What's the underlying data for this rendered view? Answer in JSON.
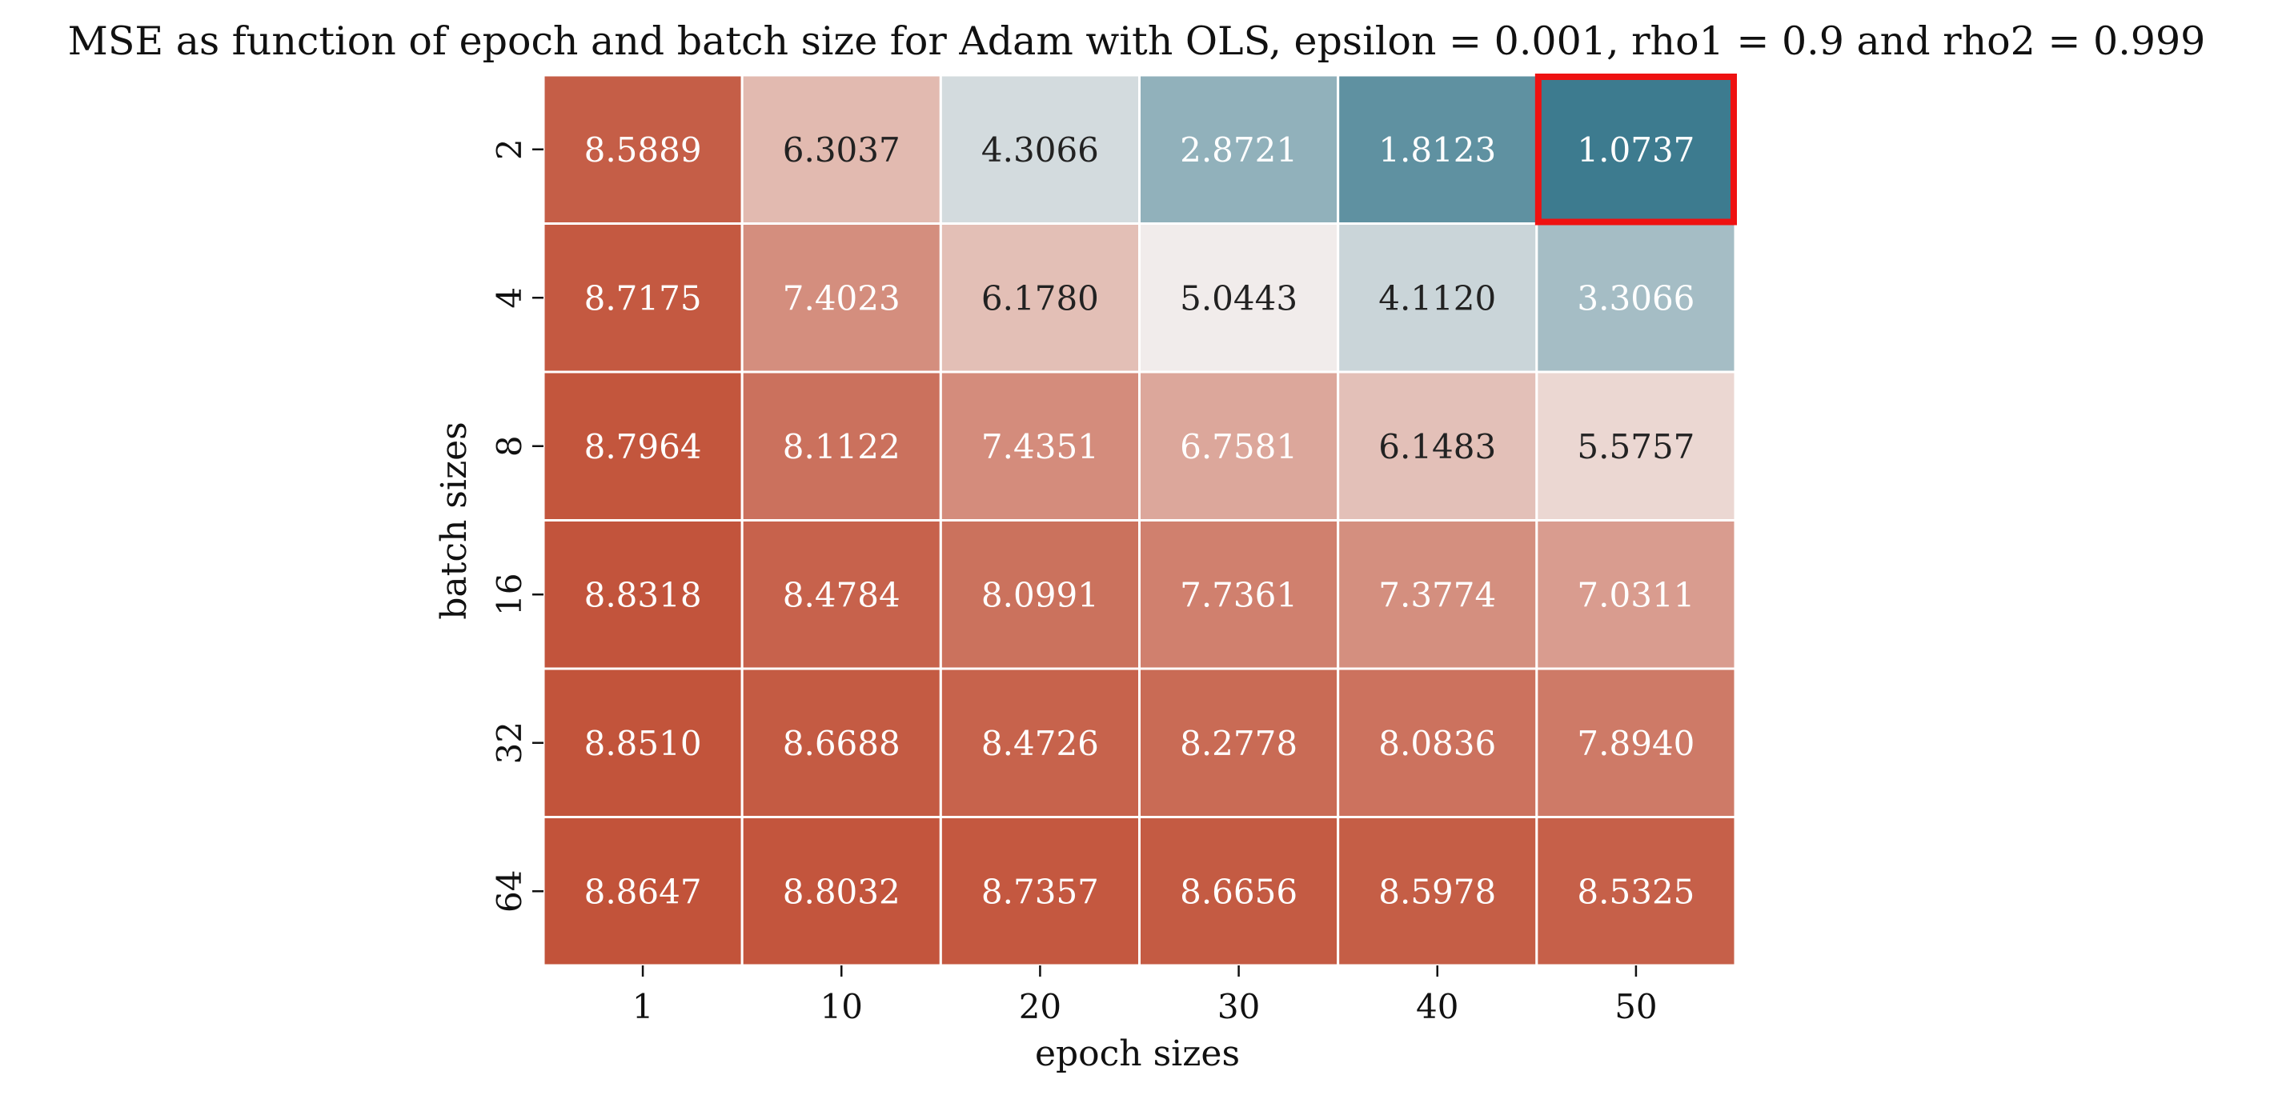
{
  "chart_data": {
    "type": "heatmap",
    "title": "MSE as function of epoch and batch size for Adam with OLS, epsilon = 0.001, rho1 = 0.9 and rho2 = 0.999",
    "xlabel": "epoch sizes",
    "ylabel": "batch sizes",
    "x": [
      "1",
      "10",
      "20",
      "30",
      "40",
      "50"
    ],
    "y": [
      "2",
      "4",
      "8",
      "16",
      "32",
      "64"
    ],
    "values": [
      [
        8.5889,
        6.3037,
        4.3066,
        2.8721,
        1.8123,
        1.0737
      ],
      [
        8.7175,
        7.4023,
        6.178,
        5.0443,
        4.112,
        3.3066
      ],
      [
        8.7964,
        8.1122,
        7.4351,
        6.7581,
        6.1483,
        5.5757
      ],
      [
        8.8318,
        8.4784,
        8.0991,
        7.7361,
        7.3774,
        7.0311
      ],
      [
        8.851,
        8.6688,
        8.4726,
        8.2778,
        8.0836,
        7.894
      ],
      [
        8.8647,
        8.8032,
        8.7357,
        8.6656,
        8.5978,
        8.5325
      ]
    ],
    "value_labels": [
      [
        "8.5889",
        "6.3037",
        "4.3066",
        "2.8721",
        "1.8123",
        "1.0737"
      ],
      [
        "8.7175",
        "7.4023",
        "6.1780",
        "5.0443",
        "4.1120",
        "3.3066"
      ],
      [
        "8.7964",
        "8.1122",
        "7.4351",
        "6.7581",
        "6.1483",
        "5.5757"
      ],
      [
        "8.8318",
        "8.4784",
        "8.0991",
        "7.7361",
        "7.3774",
        "7.0311"
      ],
      [
        "8.8510",
        "8.6688",
        "8.4726",
        "8.2778",
        "8.0836",
        "7.8940"
      ],
      [
        "8.8647",
        "8.8032",
        "8.7357",
        "8.6656",
        "8.5978",
        "8.5325"
      ]
    ],
    "colormap": {
      "low": "#3d7b8f",
      "mid": "#f2efee",
      "high": "#c2533a",
      "range": [
        1.0737,
        8.8647
      ]
    },
    "highlight": {
      "row": 0,
      "col": 5,
      "color": "#ee1111",
      "meaning": "minimum value"
    },
    "grid_lines": "white",
    "colorbar": false
  }
}
